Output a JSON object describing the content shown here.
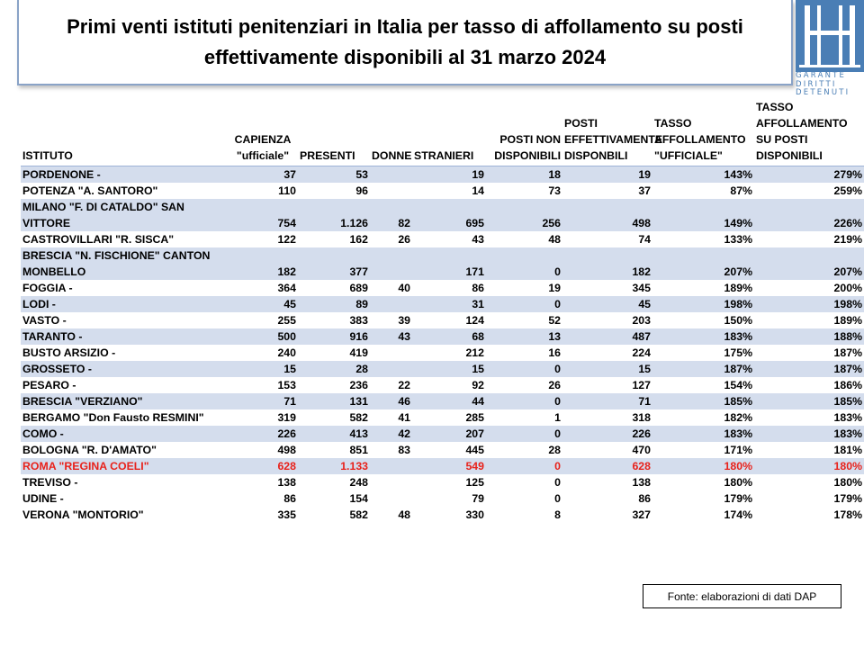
{
  "title": "Primi venti istituti penitenziari in Italia per tasso di affollamento su posti effettivamente disponibili al 31 marzo 2024",
  "logo": {
    "text_lines": [
      "GARANTE",
      "DIRITTI",
      "DETENUTI"
    ],
    "color": "#4a7eb5"
  },
  "colors": {
    "row_shade": "#d4dded",
    "highlight": "#e8221b",
    "title_border": "#8aa3c7"
  },
  "table": {
    "headers": [
      "ISTITUTO",
      "CAPIENZA \"ufficiale\"",
      "PRESENTI",
      "DONNE",
      "STRANIERI",
      "POSTI NON DISPONIBILI",
      "POSTI EFFETTIVAMENTE DISPONBILI",
      "TASSO AFFOLLAMENTO \"UFFICIALE\"",
      "TASSO AFFOLLAMENTO SU POSTI DISPONIBILI"
    ],
    "rows": [
      [
        "PORDENONE -",
        "37",
        "53",
        "",
        "19",
        "18",
        "19",
        "143%",
        "279%"
      ],
      [
        "POTENZA \"A. SANTORO\"",
        "110",
        "96",
        "",
        "14",
        "73",
        "37",
        "87%",
        "259%"
      ],
      [
        "MILANO \"F. DI CATALDO\" SAN VITTORE",
        "754",
        "1.126",
        "82",
        "695",
        "256",
        "498",
        "149%",
        "226%"
      ],
      [
        "CASTROVILLARI \"R. SISCA\"",
        "122",
        "162",
        "26",
        "43",
        "48",
        "74",
        "133%",
        "219%"
      ],
      [
        "BRESCIA \"N. FISCHIONE\" CANTON MONBELLO",
        "182",
        "377",
        "",
        "171",
        "0",
        "182",
        "207%",
        "207%"
      ],
      [
        "FOGGIA -",
        "364",
        "689",
        "40",
        "86",
        "19",
        "345",
        "189%",
        "200%"
      ],
      [
        "LODI -",
        "45",
        "89",
        "",
        "31",
        "0",
        "45",
        "198%",
        "198%"
      ],
      [
        "VASTO -",
        "255",
        "383",
        "39",
        "124",
        "52",
        "203",
        "150%",
        "189%"
      ],
      [
        "TARANTO -",
        "500",
        "916",
        "43",
        "68",
        "13",
        "487",
        "183%",
        "188%"
      ],
      [
        "BUSTO ARSIZIO -",
        "240",
        "419",
        "",
        "212",
        "16",
        "224",
        "175%",
        "187%"
      ],
      [
        "GROSSETO -",
        "15",
        "28",
        "",
        "15",
        "0",
        "15",
        "187%",
        "187%"
      ],
      [
        "PESARO -",
        "153",
        "236",
        "22",
        "92",
        "26",
        "127",
        "154%",
        "186%"
      ],
      [
        "BRESCIA \"VERZIANO\"",
        "71",
        "131",
        "46",
        "44",
        "0",
        "71",
        "185%",
        "185%"
      ],
      [
        "BERGAMO \"Don Fausto RESMINI\"",
        "319",
        "582",
        "41",
        "285",
        "1",
        "318",
        "182%",
        "183%"
      ],
      [
        "COMO -",
        "226",
        "413",
        "42",
        "207",
        "0",
        "226",
        "183%",
        "183%"
      ],
      [
        "BOLOGNA \"R. D'AMATO\"",
        "498",
        "851",
        "83",
        "445",
        "28",
        "470",
        "171%",
        "181%"
      ],
      [
        "ROMA \"REGINA COELI\"",
        "628",
        "1.133",
        "",
        "549",
        "0",
        "628",
        "180%",
        "180%"
      ],
      [
        "TREVISO -",
        "138",
        "248",
        "",
        "125",
        "0",
        "138",
        "180%",
        "180%"
      ],
      [
        "UDINE -",
        "86",
        "154",
        "",
        "79",
        "0",
        "86",
        "179%",
        "179%"
      ],
      [
        "VERONA \"MONTORIO\"",
        "335",
        "582",
        "48",
        "330",
        "8",
        "327",
        "174%",
        "178%"
      ]
    ],
    "shaded_rows": [
      0,
      2,
      4,
      6,
      8,
      10,
      12,
      14,
      16
    ],
    "highlight_row": 16
  },
  "source": "Fonte: elaborazioni di dati DAP"
}
